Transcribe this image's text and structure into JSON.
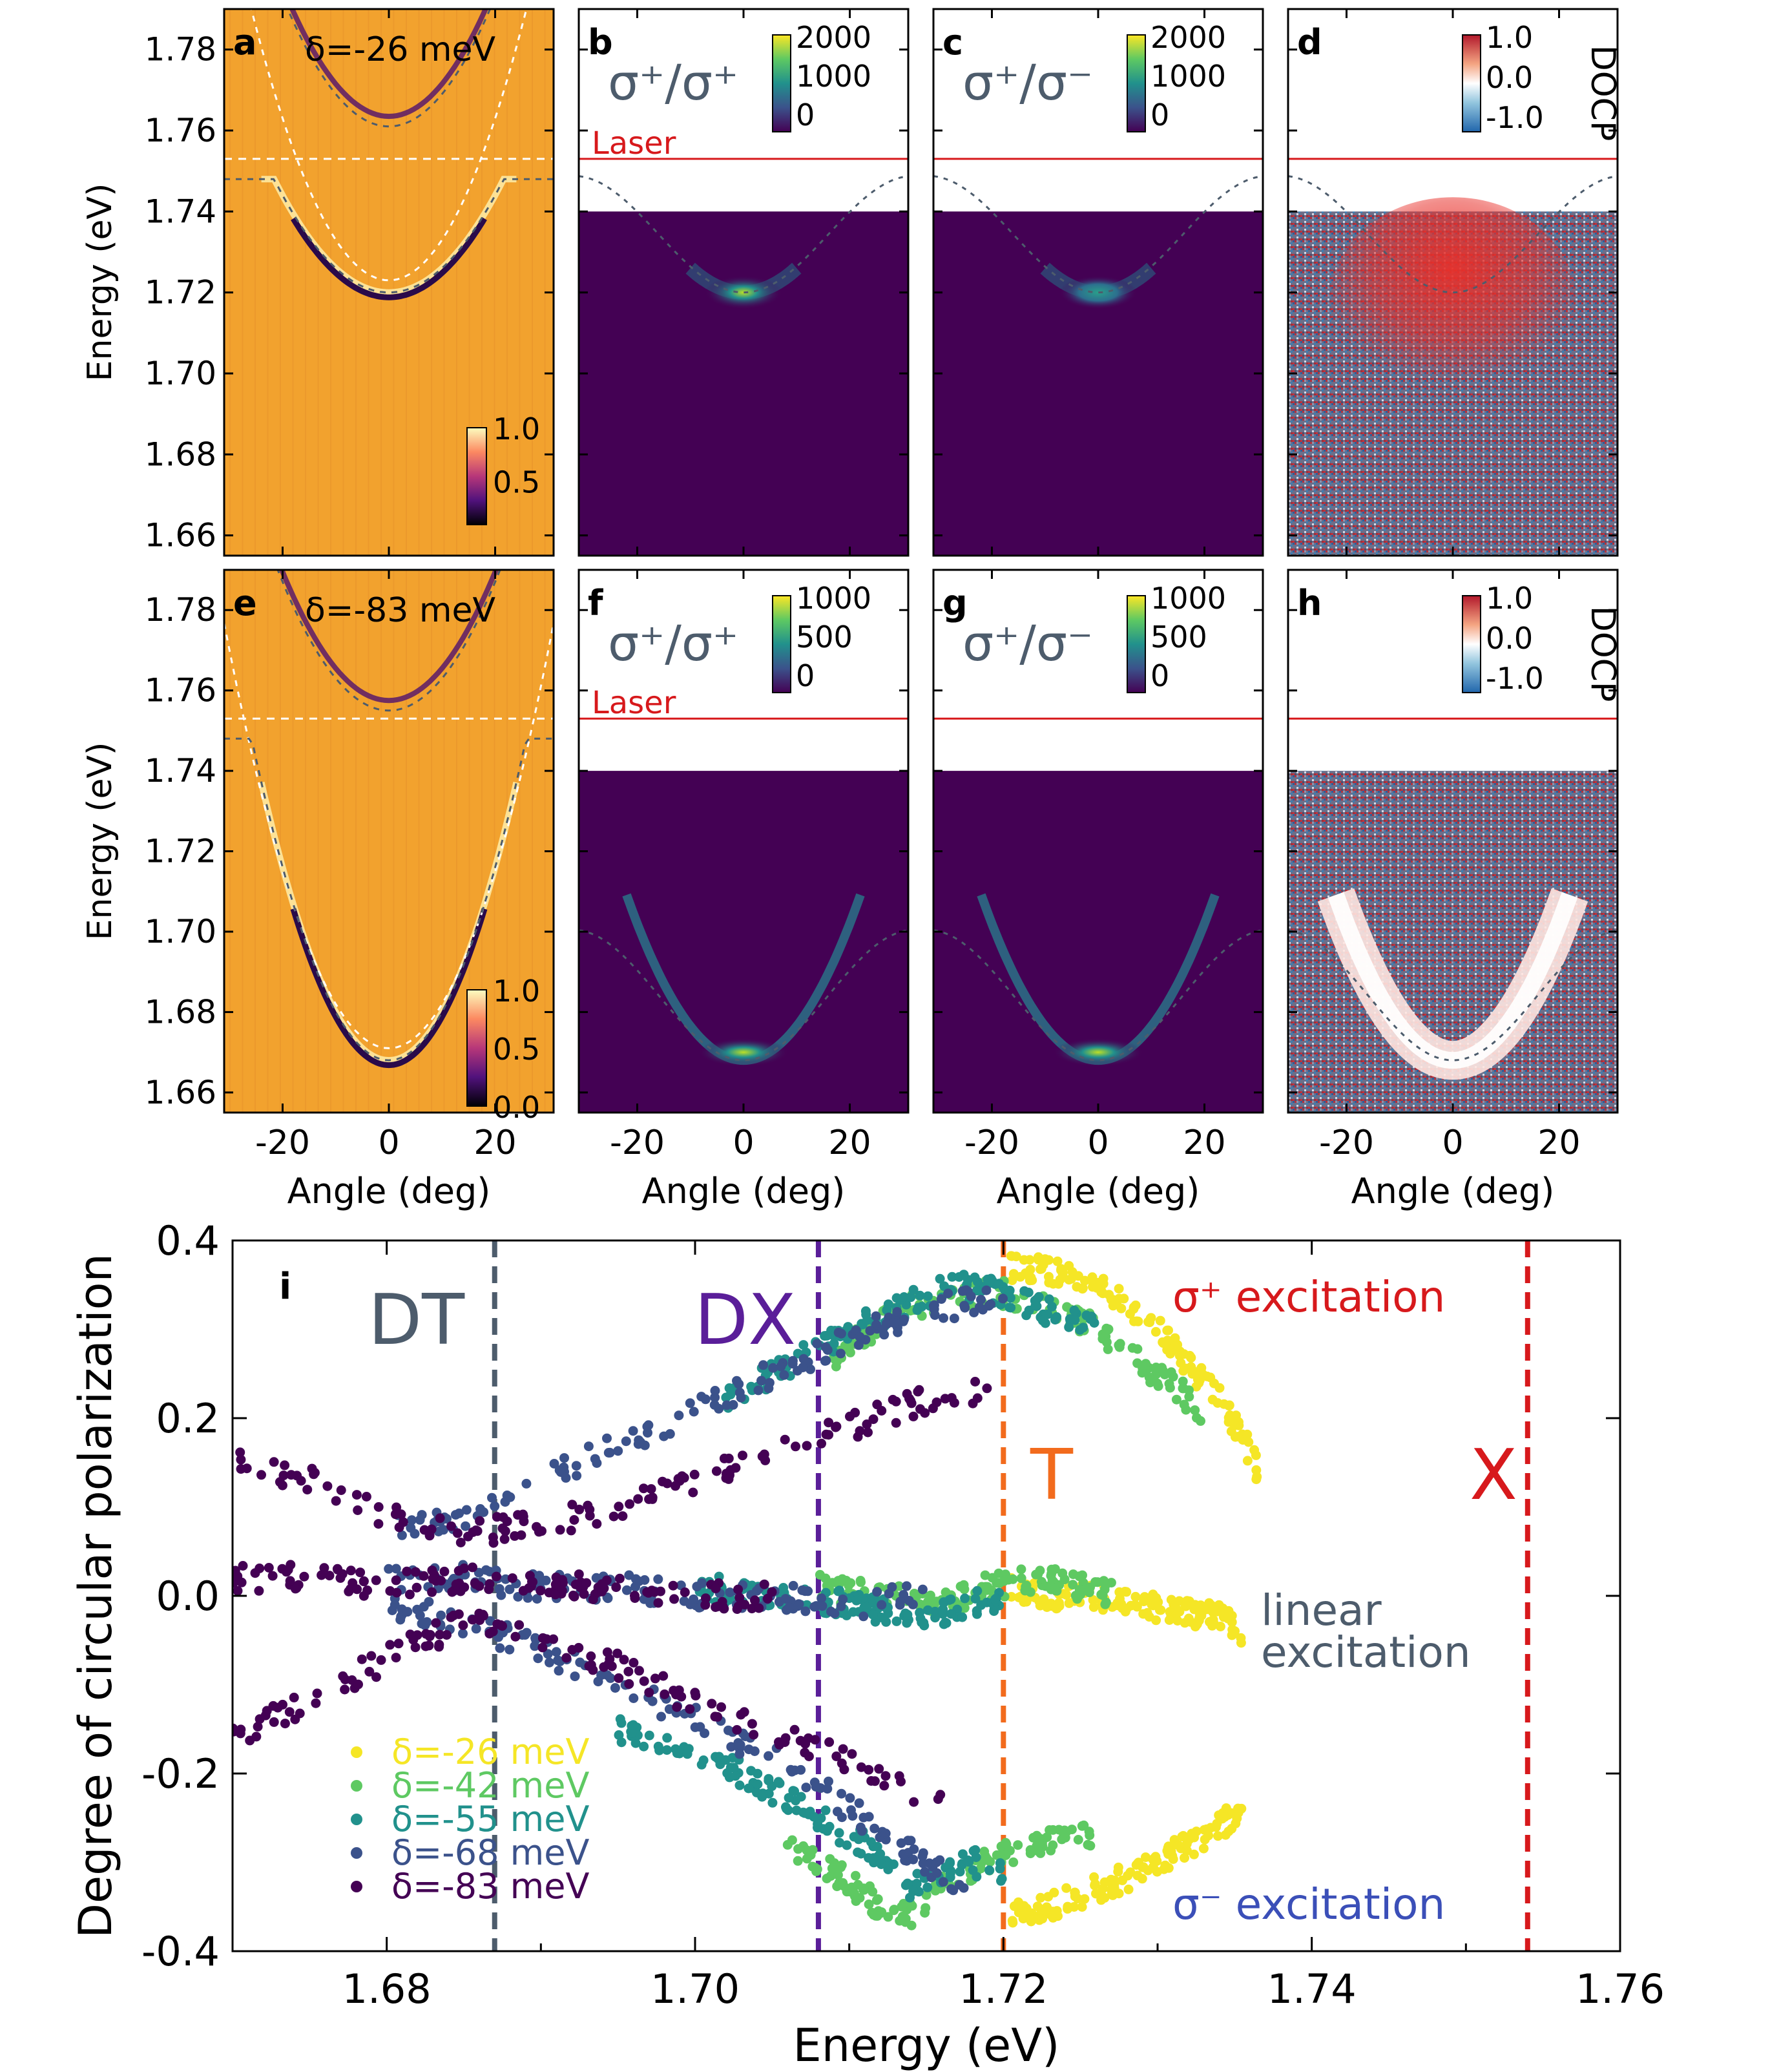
{
  "top_panels": {
    "energy_axis": {
      "label": "Energy (eV)",
      "min": 1.655,
      "max": 1.79,
      "ticks": [
        1.66,
        1.68,
        1.7,
        1.72,
        1.74,
        1.76,
        1.78
      ],
      "tick_labels": [
        "1.66",
        "1.68",
        "1.70",
        "1.72",
        "1.74",
        "1.76",
        "1.78"
      ]
    },
    "angle_axis": {
      "label": "Angle (deg)",
      "min": -31,
      "max": 31,
      "ticks": [
        -20,
        0,
        20
      ],
      "tick_labels": [
        "-20",
        "0",
        "20"
      ]
    },
    "laser_label": "Laser",
    "laser_energy": 1.753,
    "rows": [
      {
        "detuning_label": "δ=-26 meV",
        "lp_bottom": 1.72,
        "up_bottom": 1.761,
        "panels": [
          "a",
          "b",
          "c",
          "d"
        ],
        "reflect_colorbar": [
          "1.0",
          "0.5"
        ],
        "pl_colorbar": [
          "2000",
          "1000",
          "0"
        ],
        "docp_colorbar": [
          "1.0",
          "0.0",
          "-1.0"
        ]
      },
      {
        "detuning_label": "δ=-83 meV",
        "lp_bottom": 1.668,
        "up_bottom": 1.755,
        "panels": [
          "e",
          "f",
          "g",
          "h"
        ],
        "reflect_colorbar": [
          "1.0",
          "0.5",
          "0.0"
        ],
        "pl_colorbar": [
          "1000",
          "500",
          "0"
        ],
        "docp_colorbar": [
          "1.0",
          "0.0",
          "-1.0"
        ]
      }
    ],
    "pol_same": "σ⁺/σ⁺",
    "pol_cross": "σ⁺/σ⁻",
    "docp_label": "DOCP",
    "colors": {
      "laser": "#d7191c",
      "dispersion": "#4d5c6c",
      "pl_bg": "#440154",
      "reflect_bg": "#f2a22e"
    }
  },
  "chart_data": {
    "type": "scatter",
    "panel": "i",
    "xlabel": "Energy (eV)",
    "ylabel": "Degree of circular polarization",
    "xlim": [
      1.67,
      1.76
    ],
    "ylim": [
      -0.4,
      0.4
    ],
    "x_ticks": [
      1.68,
      1.7,
      1.72,
      1.74,
      1.76
    ],
    "x_tick_labels": [
      "1.68",
      "1.70",
      "1.72",
      "1.74",
      "1.76"
    ],
    "y_ticks": [
      -0.4,
      -0.2,
      0.0,
      0.2,
      0.4
    ],
    "y_tick_labels": [
      "-0.4",
      "-0.2",
      "0.0",
      "0.2",
      "0.4"
    ],
    "vlines": [
      {
        "x": 1.687,
        "label": "DT",
        "color": "#4d5c6c"
      },
      {
        "x": 1.708,
        "label": "DX",
        "color": "#5a1e99"
      },
      {
        "x": 1.72,
        "label": "T",
        "color": "#f26b1d"
      },
      {
        "x": 1.754,
        "label": "X",
        "color": "#d7191c"
      }
    ],
    "annotations": {
      "sigma_plus": "σ⁺ excitation",
      "linear_line1": "linear",
      "linear_line2": "excitation",
      "sigma_minus": "σ⁻ excitation"
    },
    "series": [
      {
        "name": "δ=-26 meV",
        "color": "#f5e626",
        "plus": {
          "x": [
            1.7205,
            1.722,
            1.724,
            1.726,
            1.728,
            1.73,
            1.732,
            1.734,
            1.7355,
            1.7365
          ],
          "y": [
            0.37,
            0.37,
            0.36,
            0.35,
            0.33,
            0.3,
            0.26,
            0.22,
            0.18,
            0.14
          ]
        },
        "linear": {
          "x": [
            1.7205,
            1.723,
            1.726,
            1.729,
            1.732,
            1.734,
            1.7355
          ],
          "y": [
            0.01,
            0.0,
            0.0,
            -0.01,
            -0.02,
            -0.02,
            -0.04
          ]
        },
        "minus": {
          "x": [
            1.7205,
            1.723,
            1.726,
            1.729,
            1.732,
            1.734,
            1.7355
          ],
          "y": [
            -0.36,
            -0.35,
            -0.33,
            -0.31,
            -0.28,
            -0.26,
            -0.24
          ]
        }
      },
      {
        "name": "δ=-42 meV",
        "color": "#5ec962",
        "plus": {
          "x": [
            1.709,
            1.713,
            1.717,
            1.72,
            1.723,
            1.726,
            1.729,
            1.731,
            1.733
          ],
          "y": [
            0.27,
            0.32,
            0.34,
            0.34,
            0.33,
            0.3,
            0.26,
            0.24,
            0.2
          ]
        },
        "linear": {
          "x": [
            1.708,
            1.712,
            1.716,
            1.719,
            1.722,
            1.725,
            1.727
          ],
          "y": [
            0.01,
            0.0,
            -0.01,
            0.01,
            0.02,
            0.01,
            0.0
          ]
        },
        "minus": {
          "x": [
            1.706,
            1.709,
            1.712,
            1.714,
            1.716,
            1.719,
            1.722,
            1.725,
            1.726
          ],
          "y": [
            -0.28,
            -0.31,
            -0.35,
            -0.36,
            -0.33,
            -0.3,
            -0.28,
            -0.27,
            -0.28
          ]
        }
      },
      {
        "name": "δ=-55 meV",
        "color": "#21918c",
        "plus": {
          "x": [
            1.702,
            1.706,
            1.71,
            1.714,
            1.717,
            1.72,
            1.723,
            1.726
          ],
          "y": [
            0.22,
            0.26,
            0.3,
            0.33,
            0.35,
            0.34,
            0.32,
            0.3
          ]
        },
        "linear": {
          "x": [
            1.7,
            1.705,
            1.71,
            1.713,
            1.716,
            1.72
          ],
          "y": [
            0.01,
            0.0,
            -0.01,
            -0.02,
            -0.02,
            0.0
          ]
        },
        "minus": {
          "x": [
            1.695,
            1.699,
            1.703,
            1.707,
            1.711,
            1.714,
            1.716,
            1.718,
            1.72
          ],
          "y": [
            -0.15,
            -0.18,
            -0.2,
            -0.24,
            -0.28,
            -0.33,
            -0.31,
            -0.3,
            -0.31
          ]
        }
      },
      {
        "name": "δ=-68 meV",
        "color": "#3b528b",
        "plus": {
          "x": [
            1.68,
            1.685,
            1.69,
            1.695,
            1.7,
            1.705,
            1.71,
            1.715,
            1.72
          ],
          "y": [
            0.08,
            0.09,
            0.13,
            0.17,
            0.21,
            0.25,
            0.29,
            0.32,
            0.34
          ]
        },
        "linear": {
          "x": [
            1.68,
            1.685,
            1.69,
            1.695,
            1.7,
            1.705,
            1.71,
            1.715
          ],
          "y": [
            0.02,
            0.02,
            0.01,
            0.01,
            0.0,
            0.0,
            -0.01,
            0.0
          ]
        },
        "minus": {
          "x": [
            1.68,
            1.685,
            1.69,
            1.695,
            1.7,
            1.705,
            1.71,
            1.715,
            1.718
          ],
          "y": [
            -0.01,
            -0.03,
            -0.06,
            -0.1,
            -0.14,
            -0.18,
            -0.24,
            -0.3,
            -0.33
          ]
        }
      },
      {
        "name": "δ=-83 meV",
        "color": "#440154",
        "plus": {
          "x": [
            1.67,
            1.675,
            1.68,
            1.685,
            1.69,
            1.695,
            1.7,
            1.705,
            1.71,
            1.715,
            1.719
          ],
          "y": [
            0.15,
            0.13,
            0.09,
            0.07,
            0.08,
            0.1,
            0.13,
            0.16,
            0.19,
            0.22,
            0.23
          ]
        },
        "linear": {
          "x": [
            1.67,
            1.675,
            1.68,
            1.685,
            1.69,
            1.695,
            1.7,
            1.705
          ],
          "y": [
            0.02,
            0.02,
            0.01,
            0.02,
            0.01,
            0.01,
            0.0,
            0.0
          ]
        },
        "minus": {
          "x": [
            1.67,
            1.675,
            1.68,
            1.685,
            1.69,
            1.695,
            1.7,
            1.705,
            1.71,
            1.716
          ],
          "y": [
            -0.16,
            -0.12,
            -0.07,
            -0.03,
            -0.05,
            -0.08,
            -0.12,
            -0.15,
            -0.19,
            -0.23
          ]
        }
      }
    ]
  }
}
